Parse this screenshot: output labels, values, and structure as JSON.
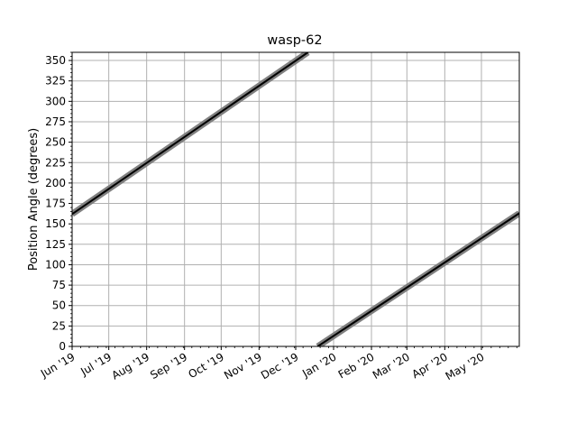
{
  "chart_data": {
    "type": "line",
    "title": "wasp-62",
    "xlabel": "",
    "ylabel": "Position Angle (degrees)",
    "xlim": [
      "2019-06-01",
      "2020-06-01"
    ],
    "ylim": [
      0,
      360
    ],
    "x_tick_labels": [
      {
        "date": "2019-06-01",
        "label": "Jun '19"
      },
      {
        "date": "2019-07-01",
        "label": "Jul '19"
      },
      {
        "date": "2019-08-01",
        "label": "Aug '19"
      },
      {
        "date": "2019-09-01",
        "label": "Sep '19"
      },
      {
        "date": "2019-10-01",
        "label": "Oct '19"
      },
      {
        "date": "2019-11-01",
        "label": "Nov '19"
      },
      {
        "date": "2019-12-01",
        "label": "Dec '19"
      },
      {
        "date": "2020-01-01",
        "label": "Jan '20"
      },
      {
        "date": "2020-02-01",
        "label": "Feb '20"
      },
      {
        "date": "2020-03-01",
        "label": "Mar '20"
      },
      {
        "date": "2020-04-01",
        "label": "Apr '20"
      },
      {
        "date": "2020-05-01",
        "label": "May '20"
      }
    ],
    "y_ticks": [
      0,
      25,
      50,
      75,
      100,
      125,
      150,
      175,
      200,
      225,
      250,
      275,
      300,
      325,
      350
    ],
    "grid": true,
    "series": [
      {
        "color": "#000000",
        "band_color": "#808080",
        "segments": [
          [
            [
              "2019-06-01",
              162
            ],
            [
              "2019-12-11",
              360
            ]
          ],
          [
            [
              "2019-12-19",
              0
            ],
            [
              "2020-06-01",
              163
            ]
          ]
        ]
      }
    ]
  }
}
